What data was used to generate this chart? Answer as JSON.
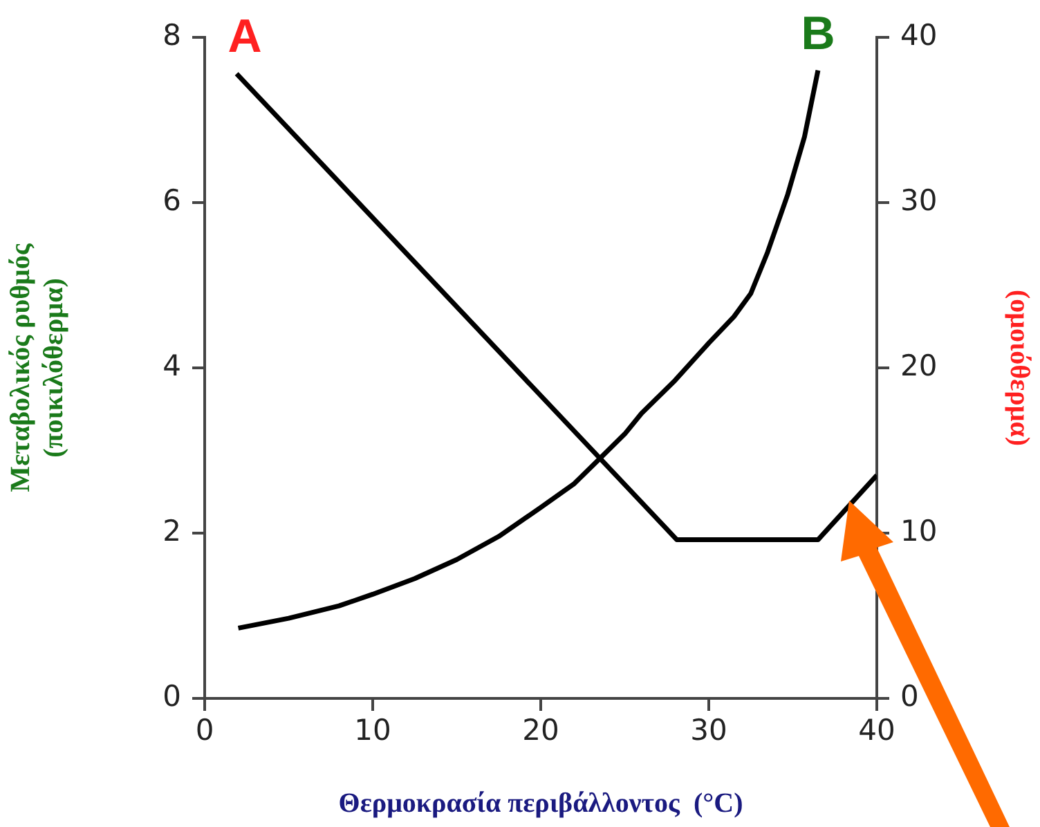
{
  "chart_data": {
    "type": "line",
    "xlabel": "Θερμοκρασία περιβάλλοντος  (°C)",
    "ylabel": "Μεταβολικός ρυθμός\n(ποικιλόθερμα)",
    "y2label": "(ομοιόθερμα)",
    "xlim": [
      0,
      40
    ],
    "xticks": [
      0,
      10,
      20,
      30,
      40
    ],
    "ylim": [
      0,
      8
    ],
    "yticks": [
      0,
      2,
      4,
      6,
      8
    ],
    "y2lim": [
      0,
      40
    ],
    "y2ticks": [
      0,
      10,
      20,
      30,
      40
    ],
    "grid": false,
    "legend": false,
    "marker": "none",
    "line_style": "solid",
    "series": [
      {
        "name": "A",
        "color": "#000000",
        "axis": "y2",
        "x": [
          1.9,
          28.1,
          36.5,
          40
        ],
        "values": [
          37.8,
          9.6,
          9.6,
          13.5
        ]
      },
      {
        "name": "B",
        "color": "#000000",
        "axis": "y",
        "x": [
          2,
          5,
          8,
          10,
          12.5,
          15,
          17.5,
          20,
          22,
          23.5,
          25,
          26,
          28,
          30,
          31.5,
          32.5,
          33.5,
          34.7,
          35.7,
          36.5
        ],
        "values": [
          0.85,
          0.97,
          1.12,
          1.26,
          1.45,
          1.68,
          1.96,
          2.31,
          2.6,
          2.9,
          3.2,
          3.45,
          3.85,
          4.3,
          4.62,
          4.9,
          5.4,
          6.1,
          6.8,
          7.6
        ]
      }
    ]
  }
}
